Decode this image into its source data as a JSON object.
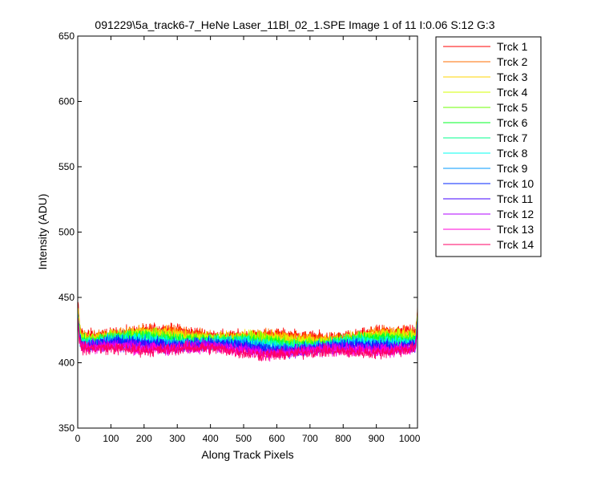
{
  "chart_data": {
    "type": "line",
    "title": "091229\\5a_track6-7_HeNe Laser_11Bl_02_1.SPE  Image 1 of 11  I:0.06  S:12  G:3",
    "xlabel": "Along Track Pixels",
    "ylabel": "Intensity (ADU)",
    "xlim": [
      0,
      1024
    ],
    "ylim": [
      350,
      650
    ],
    "xticks": [
      0,
      100,
      200,
      300,
      400,
      500,
      600,
      700,
      800,
      900,
      1000
    ],
    "yticks": [
      350,
      400,
      450,
      500,
      550,
      600,
      650
    ],
    "grid": false,
    "legend_position": "outside-right",
    "n_points": 1024,
    "series": [
      {
        "name": "Trck 1",
        "color": "#ff0000",
        "level": 422,
        "start": 446,
        "end": 440,
        "noise": 3.0
      },
      {
        "name": "Trck 2",
        "color": "#ff6d00",
        "level": 421,
        "start": 444,
        "end": 438,
        "noise": 3.0
      },
      {
        "name": "Trck 3",
        "color": "#ffd500",
        "level": 420,
        "start": 443,
        "end": 437,
        "noise": 3.0
      },
      {
        "name": "Trck 4",
        "color": "#d4ff00",
        "level": 419,
        "start": 442,
        "end": 436,
        "noise": 3.0
      },
      {
        "name": "Trck 5",
        "color": "#6dff00",
        "level": 418,
        "start": 441,
        "end": 435,
        "noise": 3.0
      },
      {
        "name": "Trck 6",
        "color": "#00ff26",
        "level": 417,
        "start": 440,
        "end": 434,
        "noise": 3.0
      },
      {
        "name": "Trck 7",
        "color": "#00ff8d",
        "level": 416,
        "start": 439,
        "end": 433,
        "noise": 3.0
      },
      {
        "name": "Trck 8",
        "color": "#00fff2",
        "level": 415,
        "start": 438,
        "end": 432,
        "noise": 3.0
      },
      {
        "name": "Trck 9",
        "color": "#0099ff",
        "level": 414,
        "start": 437,
        "end": 431,
        "noise": 3.0
      },
      {
        "name": "Trck 10",
        "color": "#0024ff",
        "level": 413,
        "start": 436,
        "end": 430,
        "noise": 3.0
      },
      {
        "name": "Trck 11",
        "color": "#4000ff",
        "level": 412,
        "start": 435,
        "end": 429,
        "noise": 3.0
      },
      {
        "name": "Trck 12",
        "color": "#b000ff",
        "level": 411,
        "start": 434,
        "end": 428,
        "noise": 3.0
      },
      {
        "name": "Trck 13",
        "color": "#ff00d9",
        "level": 410,
        "start": 433,
        "end": 427,
        "noise": 3.0
      },
      {
        "name": "Trck 14",
        "color": "#ff0066",
        "level": 409,
        "start": 432,
        "end": 426,
        "noise": 3.0
      }
    ]
  }
}
